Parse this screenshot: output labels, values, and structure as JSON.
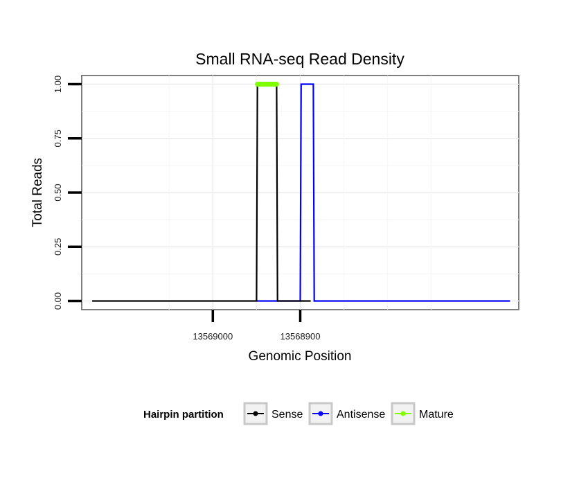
{
  "chart_data": {
    "type": "line",
    "title": "Small RNA-seq Read Density",
    "xlabel": "Genomic Position",
    "ylabel": "Total Reads",
    "x_reversed": true,
    "xlim": [
      13569150,
      13568650
    ],
    "ylim": [
      -0.04,
      1.04
    ],
    "x_ticks": [
      {
        "value": 13569000,
        "label": "13569000"
      },
      {
        "value": 13568900,
        "label": "13568900"
      }
    ],
    "y_ticks": [
      {
        "value": 0,
        "label": "0.00"
      },
      {
        "value": 0.25,
        "label": "0.25"
      },
      {
        "value": 0.5,
        "label": "0.50"
      },
      {
        "value": 0.75,
        "label": "0.75"
      },
      {
        "value": 1,
        "label": "1.00"
      }
    ],
    "grid": true,
    "series": [
      {
        "name": "Sense",
        "color": "#000000",
        "points": [
          {
            "x": 13569138,
            "y": 0
          },
          {
            "x": 13568950,
            "y": 0
          },
          {
            "x": 13568949,
            "y": 1
          },
          {
            "x": 13568927,
            "y": 1
          },
          {
            "x": 13568926,
            "y": 0
          },
          {
            "x": 13568888,
            "y": 0
          }
        ]
      },
      {
        "name": "Antisense",
        "color": "#0000ff",
        "points": [
          {
            "x": 13568950,
            "y": 0
          },
          {
            "x": 13568926,
            "y": 0
          },
          {
            "x": 13568900,
            "y": 0
          },
          {
            "x": 13568899,
            "y": 1
          },
          {
            "x": 13568885,
            "y": 1
          },
          {
            "x": 13568884,
            "y": 0
          },
          {
            "x": 13568660,
            "y": 0
          }
        ]
      },
      {
        "name": "Mature",
        "color": "#80ff00",
        "points": [
          {
            "x": 13568949,
            "y": 1
          },
          {
            "x": 13568927,
            "y": 1
          }
        ]
      }
    ],
    "legend": {
      "title": "Hairpin partition",
      "position": "bottom",
      "entries": [
        "Sense",
        "Antisense",
        "Mature"
      ]
    }
  }
}
